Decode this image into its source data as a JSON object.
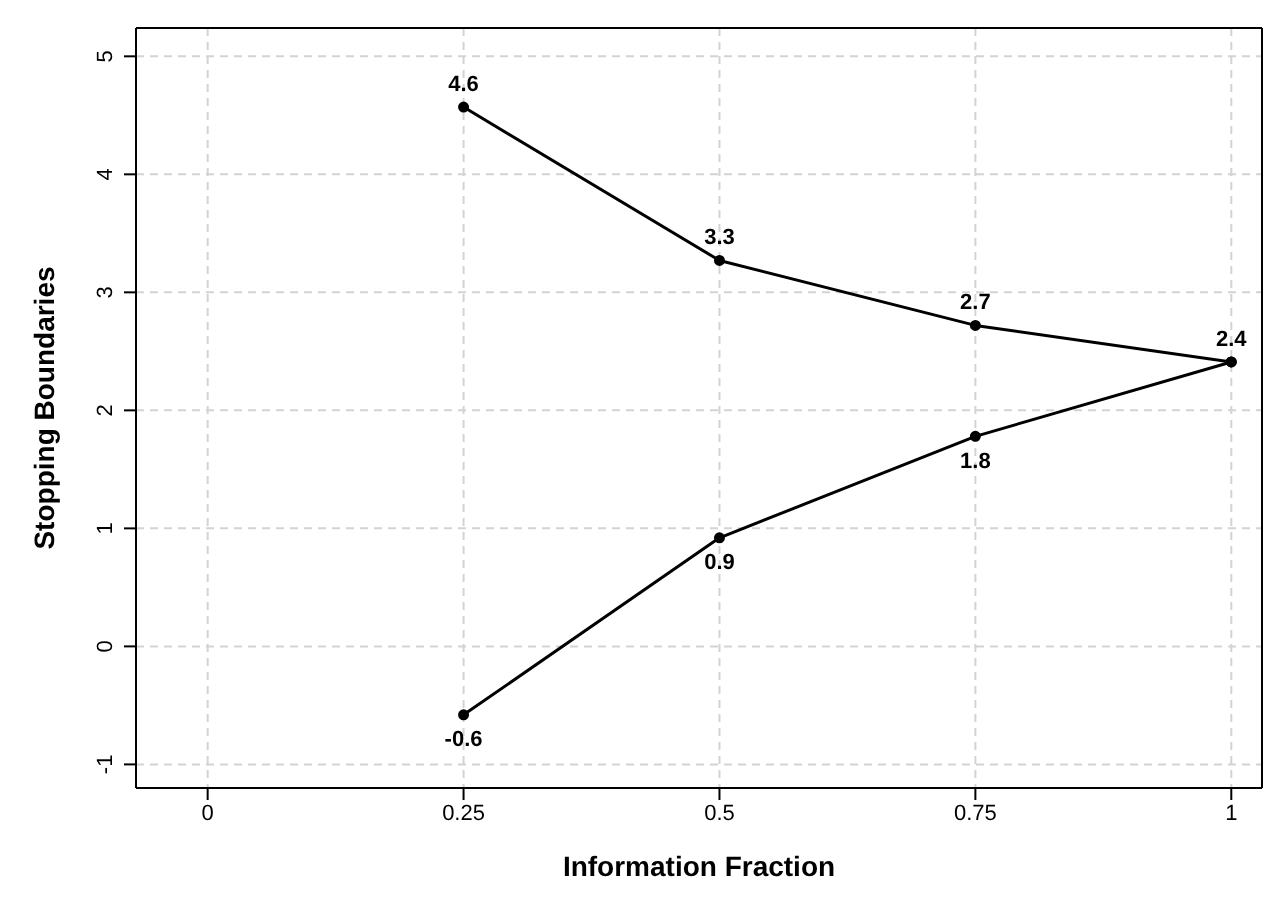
{
  "chart_data": {
    "type": "line",
    "xlabel": "Information Fraction",
    "ylabel": "Stopping Boundaries",
    "x": [
      0.25,
      0.5,
      0.75,
      1
    ],
    "series": [
      {
        "color": "#000000",
        "values": [
          4.57,
          3.27,
          2.72,
          2.41
        ],
        "value_labels": [
          "4.6",
          "3.3",
          "2.7",
          "2.4"
        ]
      },
      {
        "color": "#000000",
        "values": [
          -0.58,
          0.92,
          1.78,
          2.41
        ],
        "value_labels": [
          "-0.6",
          "0.9",
          "1.8",
          null
        ]
      }
    ],
    "xlim": [
      -0.07,
      1.03
    ],
    "xticks": [
      0,
      0.25,
      0.5,
      0.75,
      1
    ],
    "ylim": [
      -1.2,
      5.24
    ],
    "yticks": [
      -1,
      0,
      1,
      2,
      3,
      4,
      5
    ],
    "grid": true,
    "marker": "circle",
    "line_style": "solid"
  }
}
